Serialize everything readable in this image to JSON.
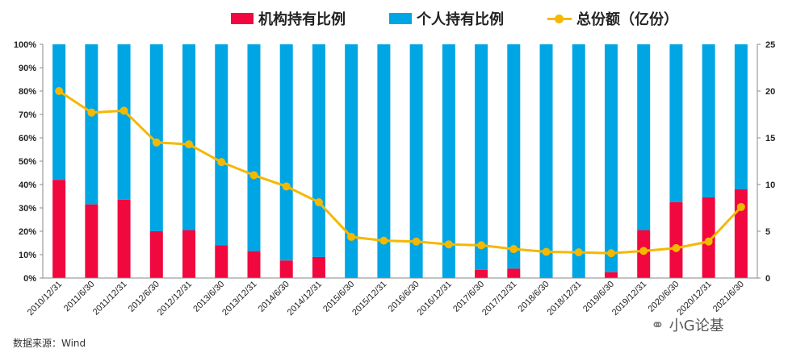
{
  "chart_data": {
    "type": "bar",
    "stacked": true,
    "categories": [
      "2010/12/31",
      "2011/6/30",
      "2011/12/31",
      "2012/6/30",
      "2012/12/31",
      "2013/6/30",
      "2013/12/31",
      "2014/6/30",
      "2014/12/31",
      "2015/6/30",
      "2015/12/31",
      "2016/6/30",
      "2016/12/31",
      "2017/6/30",
      "2017/12/31",
      "2018/6/30",
      "2018/12/31",
      "2019/6/30",
      "2019/12/31",
      "2020/6/30",
      "2020/12/31",
      "2021/6/30"
    ],
    "series": [
      {
        "name": "机构持有比例",
        "type": "bar",
        "axis": "left",
        "color": "#F0083E",
        "values": [
          42,
          31.5,
          33.5,
          20,
          20.5,
          14,
          11.5,
          7.5,
          9,
          0,
          0,
          0,
          0,
          3.5,
          4,
          0,
          0,
          2.5,
          20.5,
          32.5,
          34.5,
          38
        ]
      },
      {
        "name": "个人持有比例",
        "type": "bar",
        "axis": "left",
        "color": "#00A6E4",
        "values": [
          58,
          68.5,
          66.5,
          80,
          79.5,
          86,
          88.5,
          92.5,
          91,
          100,
          100,
          100,
          100,
          96.5,
          96,
          100,
          100,
          97.5,
          79.5,
          67.5,
          65.5,
          62
        ]
      },
      {
        "name": "总份额（亿份）",
        "type": "line",
        "axis": "right",
        "color": "#F5B800",
        "values": [
          20,
          17.7,
          17.9,
          14.5,
          14.3,
          12.4,
          11,
          9.8,
          8.1,
          4.4,
          4,
          3.9,
          3.6,
          3.5,
          3.1,
          2.8,
          2.75,
          2.65,
          2.9,
          3.2,
          3.9,
          7.6
        ]
      }
    ],
    "y_left": {
      "range": [
        0,
        100
      ],
      "ticks": [
        "0%",
        "10%",
        "20%",
        "30%",
        "40%",
        "50%",
        "60%",
        "70%",
        "80%",
        "90%",
        "100%"
      ]
    },
    "y_right": {
      "range": [
        0,
        25
      ],
      "ticks": [
        "0",
        "5",
        "10",
        "15",
        "20",
        "25"
      ]
    },
    "legend_position": "top",
    "grid": false
  },
  "footer": {
    "source": "数据来源：Wind",
    "watermark": "小G论基"
  }
}
